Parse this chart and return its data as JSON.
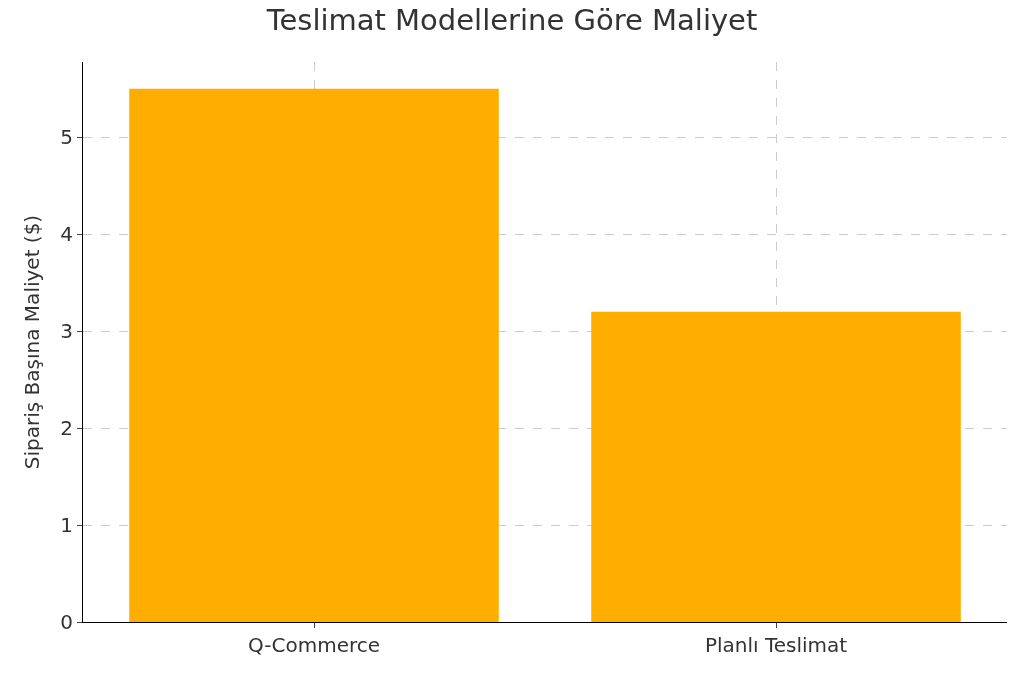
{
  "chart_data": {
    "type": "bar",
    "title": "Teslimat Modellerine Göre Maliyet",
    "ylabel": "Sipariş Başına Maliyet ($)",
    "categories": [
      "Q-Commerce",
      "Planlı Teslimat"
    ],
    "values": [
      5.5,
      3.2
    ],
    "color": "#ffae00",
    "ylim": [
      0,
      5.775
    ],
    "yticks": [
      0,
      1,
      2,
      3,
      4,
      5
    ],
    "grid": true,
    "legend": false
  }
}
